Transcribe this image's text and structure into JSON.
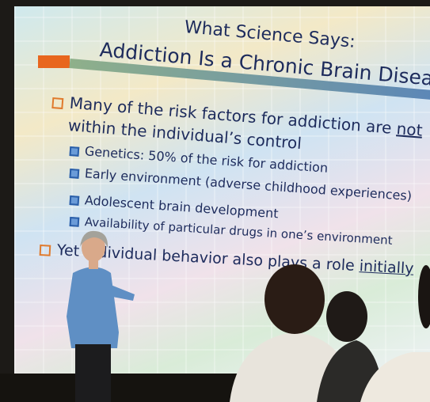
{
  "slide": {
    "title": "What Science Says:",
    "subtitle": "Addiction Is a Chronic Brain Disease",
    "bullets": [
      {
        "text": "Many of the risk factors for addiction are",
        "underlined": "not",
        "continuation": "within the individual’s control",
        "subitems": [
          "Genetics: 50% of the risk for addiction",
          "Early environment (adverse childhood experiences)",
          "Adolescent brain development",
          "Availability of particular drugs in one’s environment"
        ]
      },
      {
        "text": "Yet individual behavior also plays a role",
        "underlined": "initially"
      }
    ]
  }
}
